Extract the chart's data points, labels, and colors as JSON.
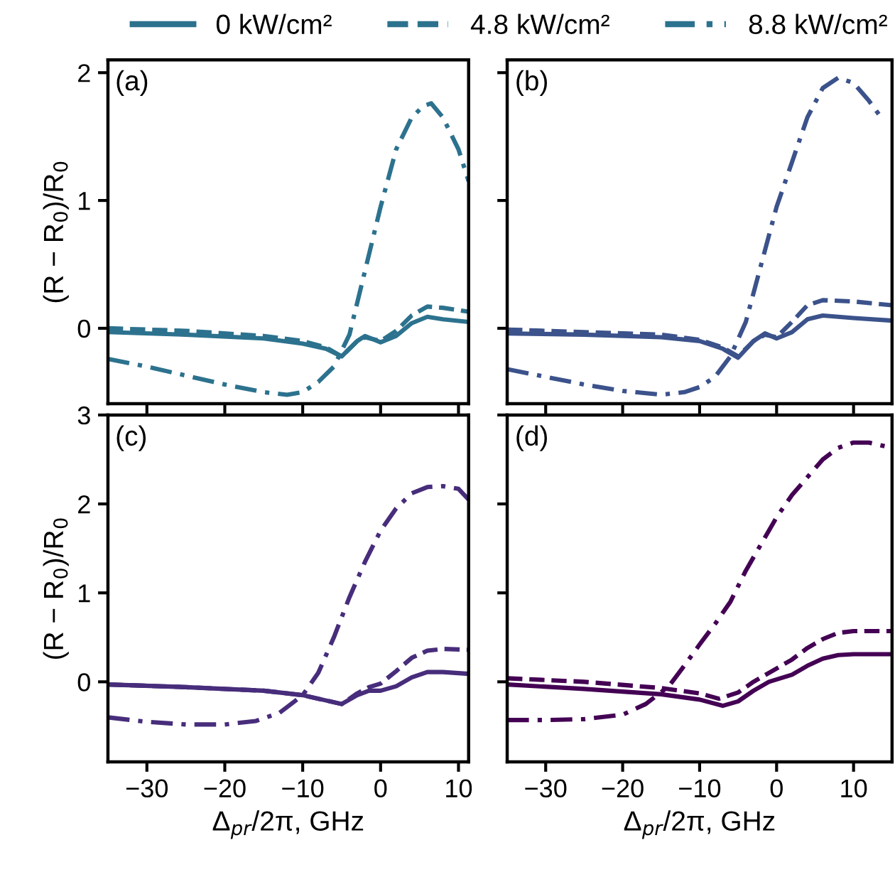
{
  "chart_data": [
    {
      "type": "line",
      "annotations": [
        "(a)"
      ],
      "ylabel": "(R − R$_{0}$)/R$_{0}$",
      "xlim": [
        -35,
        11.3
      ],
      "ylim": [
        -0.59,
        2.1
      ],
      "xticks": [
        -30,
        -20,
        -10,
        0,
        10
      ],
      "yticks": [
        0,
        1,
        2
      ],
      "tick_labels": "y",
      "legend": "top",
      "grid": false,
      "series": [
        {
          "name": "0 kW/cm²",
          "color": "#2c728e",
          "line_style": "solid",
          "x": [
            -35,
            -25,
            -15,
            -10,
            -7,
            -5,
            -3,
            -2,
            0,
            2,
            4,
            6,
            8,
            11.3
          ],
          "values": [
            -0.03,
            -0.05,
            -0.08,
            -0.12,
            -0.16,
            -0.22,
            -0.1,
            -0.06,
            -0.11,
            -0.06,
            0.04,
            0.09,
            0.07,
            0.05
          ]
        },
        {
          "name": "4.8 kW/cm²",
          "color": "#2c728e",
          "line_style": "dashed",
          "x": [
            -35,
            -25,
            -15,
            -10,
            -7,
            -5,
            -3,
            -2,
            0,
            2,
            4,
            6,
            8,
            11.3
          ],
          "values": [
            0.0,
            -0.02,
            -0.06,
            -0.1,
            -0.15,
            -0.22,
            -0.1,
            -0.07,
            -0.1,
            -0.02,
            0.1,
            0.17,
            0.16,
            0.13
          ]
        },
        {
          "name": "8.8 kW/cm²",
          "color": "#2c728e",
          "line_style": "dashdot",
          "x": [
            -35,
            -30,
            -25,
            -20,
            -15,
            -12,
            -10,
            -8,
            -6,
            -4,
            -2,
            0,
            2,
            4,
            5.5,
            6.5,
            8,
            10,
            11.3
          ],
          "values": [
            -0.24,
            -0.3,
            -0.37,
            -0.44,
            -0.5,
            -0.52,
            -0.5,
            -0.42,
            -0.3,
            -0.05,
            0.45,
            0.95,
            1.4,
            1.65,
            1.74,
            1.76,
            1.65,
            1.4,
            1.15
          ]
        }
      ]
    },
    {
      "type": "line",
      "annotations": [
        "(b)"
      ],
      "xlim": [
        -35,
        15
      ],
      "ylim": [
        -0.59,
        2.1
      ],
      "xticks": [
        -30,
        -20,
        -10,
        0,
        10
      ],
      "yticks": [
        0,
        1,
        2
      ],
      "tick_labels": false,
      "grid": false,
      "series": [
        {
          "color": "#3b528b",
          "line_style": "solid",
          "x": [
            -35,
            -25,
            -15,
            -10,
            -7,
            -5,
            -3,
            -1.5,
            0,
            2,
            4,
            6,
            10,
            15
          ],
          "values": [
            -0.04,
            -0.05,
            -0.07,
            -0.1,
            -0.16,
            -0.23,
            -0.1,
            -0.04,
            -0.08,
            -0.03,
            0.07,
            0.1,
            0.08,
            0.06
          ]
        },
        {
          "color": "#3b528b",
          "line_style": "dashed",
          "x": [
            -35,
            -25,
            -15,
            -10,
            -7,
            -5,
            -3,
            -1.5,
            0,
            2,
            4,
            6,
            10,
            15
          ],
          "values": [
            -0.01,
            -0.03,
            -0.05,
            -0.09,
            -0.15,
            -0.22,
            -0.1,
            -0.05,
            -0.07,
            0.05,
            0.18,
            0.22,
            0.21,
            0.18
          ]
        },
        {
          "color": "#3b528b",
          "line_style": "dashdot",
          "x": [
            -35,
            -30,
            -25,
            -20,
            -15,
            -12,
            -10,
            -8,
            -6,
            -4,
            -2,
            0,
            2,
            4,
            6,
            8,
            10,
            12,
            13.7
          ],
          "values": [
            -0.32,
            -0.38,
            -0.44,
            -0.49,
            -0.52,
            -0.5,
            -0.46,
            -0.38,
            -0.22,
            0.05,
            0.5,
            0.95,
            1.3,
            1.65,
            1.88,
            1.96,
            1.92,
            1.78,
            1.64
          ]
        }
      ]
    },
    {
      "type": "line",
      "annotations": [
        "(c)"
      ],
      "ylabel": "(R − R$_{0}$)/R$_{0}$",
      "xlabel": "Δ$_{pr}$/2π, GHz",
      "xlim": [
        -35,
        11.3
      ],
      "ylim": [
        -0.9,
        3.0
      ],
      "xticks": [
        -30,
        -20,
        -10,
        0,
        10
      ],
      "yticks": [
        0,
        1,
        2,
        3
      ],
      "grid": false,
      "series": [
        {
          "color": "#472d7b",
          "line_style": "solid",
          "x": [
            -35,
            -25,
            -15,
            -10,
            -7,
            -5,
            -3,
            -1.5,
            0,
            2,
            4,
            6,
            8,
            11.3
          ],
          "values": [
            -0.03,
            -0.06,
            -0.1,
            -0.15,
            -0.21,
            -0.25,
            -0.15,
            -0.1,
            -0.1,
            -0.05,
            0.05,
            0.11,
            0.11,
            0.09
          ]
        },
        {
          "color": "#472d7b",
          "line_style": "dashed",
          "x": [
            -35,
            -25,
            -15,
            -10,
            -7,
            -5,
            -3,
            -1.5,
            0,
            2,
            4,
            6,
            8,
            11.3
          ],
          "values": [
            -0.03,
            -0.06,
            -0.1,
            -0.15,
            -0.21,
            -0.25,
            -0.13,
            -0.06,
            -0.02,
            0.12,
            0.27,
            0.35,
            0.37,
            0.36
          ]
        },
        {
          "color": "#472d7b",
          "line_style": "dashdot",
          "x": [
            -35,
            -30,
            -25,
            -20,
            -16,
            -13,
            -10,
            -8,
            -6,
            -4,
            -2,
            0,
            2,
            4,
            6,
            8,
            10,
            11.3
          ],
          "values": [
            -0.4,
            -0.45,
            -0.48,
            -0.48,
            -0.44,
            -0.35,
            -0.15,
            0.1,
            0.5,
            0.95,
            1.35,
            1.7,
            1.95,
            2.12,
            2.19,
            2.2,
            2.17,
            2.05
          ]
        }
      ]
    },
    {
      "type": "line",
      "annotations": [
        "(d)"
      ],
      "xlabel": "Δ$_{pr}$/2π, GHz",
      "xlim": [
        -35,
        15
      ],
      "ylim": [
        -0.9,
        3.0
      ],
      "xticks": [
        -30,
        -20,
        -10,
        0,
        10
      ],
      "yticks": [
        0,
        1,
        2,
        3
      ],
      "tick_labels": "x",
      "grid": false,
      "series": [
        {
          "color": "#440154",
          "line_style": "solid",
          "x": [
            -35,
            -25,
            -15,
            -10,
            -7,
            -5,
            -3,
            -1,
            2,
            4,
            6,
            8,
            10,
            15
          ],
          "values": [
            -0.03,
            -0.08,
            -0.14,
            -0.2,
            -0.27,
            -0.22,
            -0.1,
            0.0,
            0.08,
            0.18,
            0.26,
            0.3,
            0.31,
            0.31
          ]
        },
        {
          "color": "#440154",
          "line_style": "dashed",
          "x": [
            -35,
            -25,
            -15,
            -10,
            -7.5,
            -5,
            -3,
            -1,
            2,
            4,
            6,
            8,
            10,
            15
          ],
          "values": [
            0.04,
            0.0,
            -0.07,
            -0.13,
            -0.19,
            -0.12,
            0.0,
            0.1,
            0.25,
            0.38,
            0.48,
            0.55,
            0.57,
            0.57
          ]
        },
        {
          "color": "#440154",
          "line_style": "dashdot",
          "x": [
            -35,
            -30,
            -25,
            -20,
            -17,
            -14,
            -12,
            -10,
            -8,
            -6,
            -4,
            -2,
            0,
            2,
            4,
            6,
            8,
            10,
            12,
            15
          ],
          "values": [
            -0.43,
            -0.43,
            -0.42,
            -0.37,
            -0.25,
            -0.05,
            0.18,
            0.42,
            0.65,
            0.9,
            1.25,
            1.55,
            1.85,
            2.1,
            2.3,
            2.5,
            2.63,
            2.69,
            2.69,
            2.63
          ]
        }
      ]
    }
  ]
}
